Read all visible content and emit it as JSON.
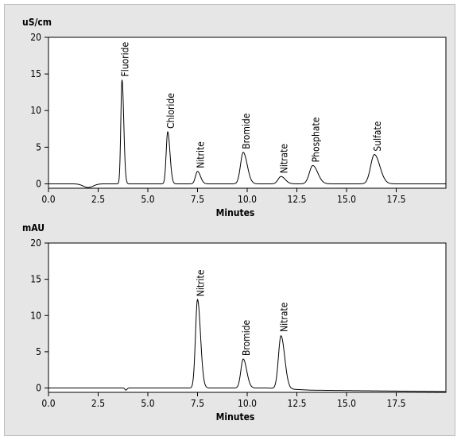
{
  "chart_data": [
    {
      "type": "line",
      "unit_label": "uS/cm",
      "xlabel": "Minutes",
      "xlim": [
        0,
        20
      ],
      "ylim": [
        -0.6,
        20
      ],
      "xticks": [
        0,
        2.5,
        5,
        7.5,
        10,
        12.5,
        15,
        17.5
      ],
      "xtick_labels": [
        "0.0",
        "2.5",
        "5.0",
        "7.5",
        "10.0",
        "12.5",
        "15.0",
        "17.5"
      ],
      "yticks": [
        0,
        5,
        10,
        15,
        20
      ],
      "ytick_labels": [
        "0",
        "5",
        "10",
        "15",
        "20"
      ],
      "baseline": 0,
      "dips": [
        {
          "x": 2.0,
          "depth": -0.5,
          "width": 0.25
        }
      ],
      "peaks": [
        {
          "name": "Fluoride",
          "x": 3.7,
          "height": 14.2,
          "width": 0.07
        },
        {
          "name": "Chloride",
          "x": 6.0,
          "height": 7.1,
          "width": 0.09
        },
        {
          "name": "Nitrite",
          "x": 7.5,
          "height": 1.7,
          "width": 0.12
        },
        {
          "name": "Bromide",
          "x": 9.8,
          "height": 4.3,
          "width": 0.16
        },
        {
          "name": "Nitrate",
          "x": 11.7,
          "height": 1.0,
          "width": 0.17
        },
        {
          "name": "Phosphate",
          "x": 13.3,
          "height": 2.5,
          "width": 0.2
        },
        {
          "name": "Sulfate",
          "x": 16.4,
          "height": 4.0,
          "width": 0.22
        }
      ]
    },
    {
      "type": "line",
      "unit_label": "mAU",
      "xlabel": "Minutes",
      "xlim": [
        0,
        20
      ],
      "ylim": [
        -0.6,
        20
      ],
      "xticks": [
        0,
        2.5,
        5,
        7.5,
        10,
        12.5,
        15,
        17.5
      ],
      "xtick_labels": [
        "0.0",
        "2.5",
        "5.0",
        "7.5",
        "10.0",
        "12.5",
        "15.0",
        "17.5"
      ],
      "yticks": [
        0,
        5,
        10,
        15,
        20
      ],
      "ytick_labels": [
        "0",
        "5",
        "10",
        "15",
        "20"
      ],
      "baseline": 0,
      "drift": [
        {
          "x": 0,
          "y": 0
        },
        {
          "x": 11,
          "y": 0
        },
        {
          "x": 13.2,
          "y": -0.3
        },
        {
          "x": 20,
          "y": -0.5
        }
      ],
      "dips": [
        {
          "x": 3.9,
          "depth": -0.3,
          "width": 0.05
        }
      ],
      "peaks": [
        {
          "name": "Nitrite",
          "x": 7.5,
          "height": 12.2,
          "width": 0.12
        },
        {
          "name": "Bromide",
          "x": 9.8,
          "height": 4.0,
          "width": 0.14
        },
        {
          "name": "Nitrate",
          "x": 11.7,
          "height": 7.3,
          "width": 0.15
        }
      ]
    }
  ]
}
